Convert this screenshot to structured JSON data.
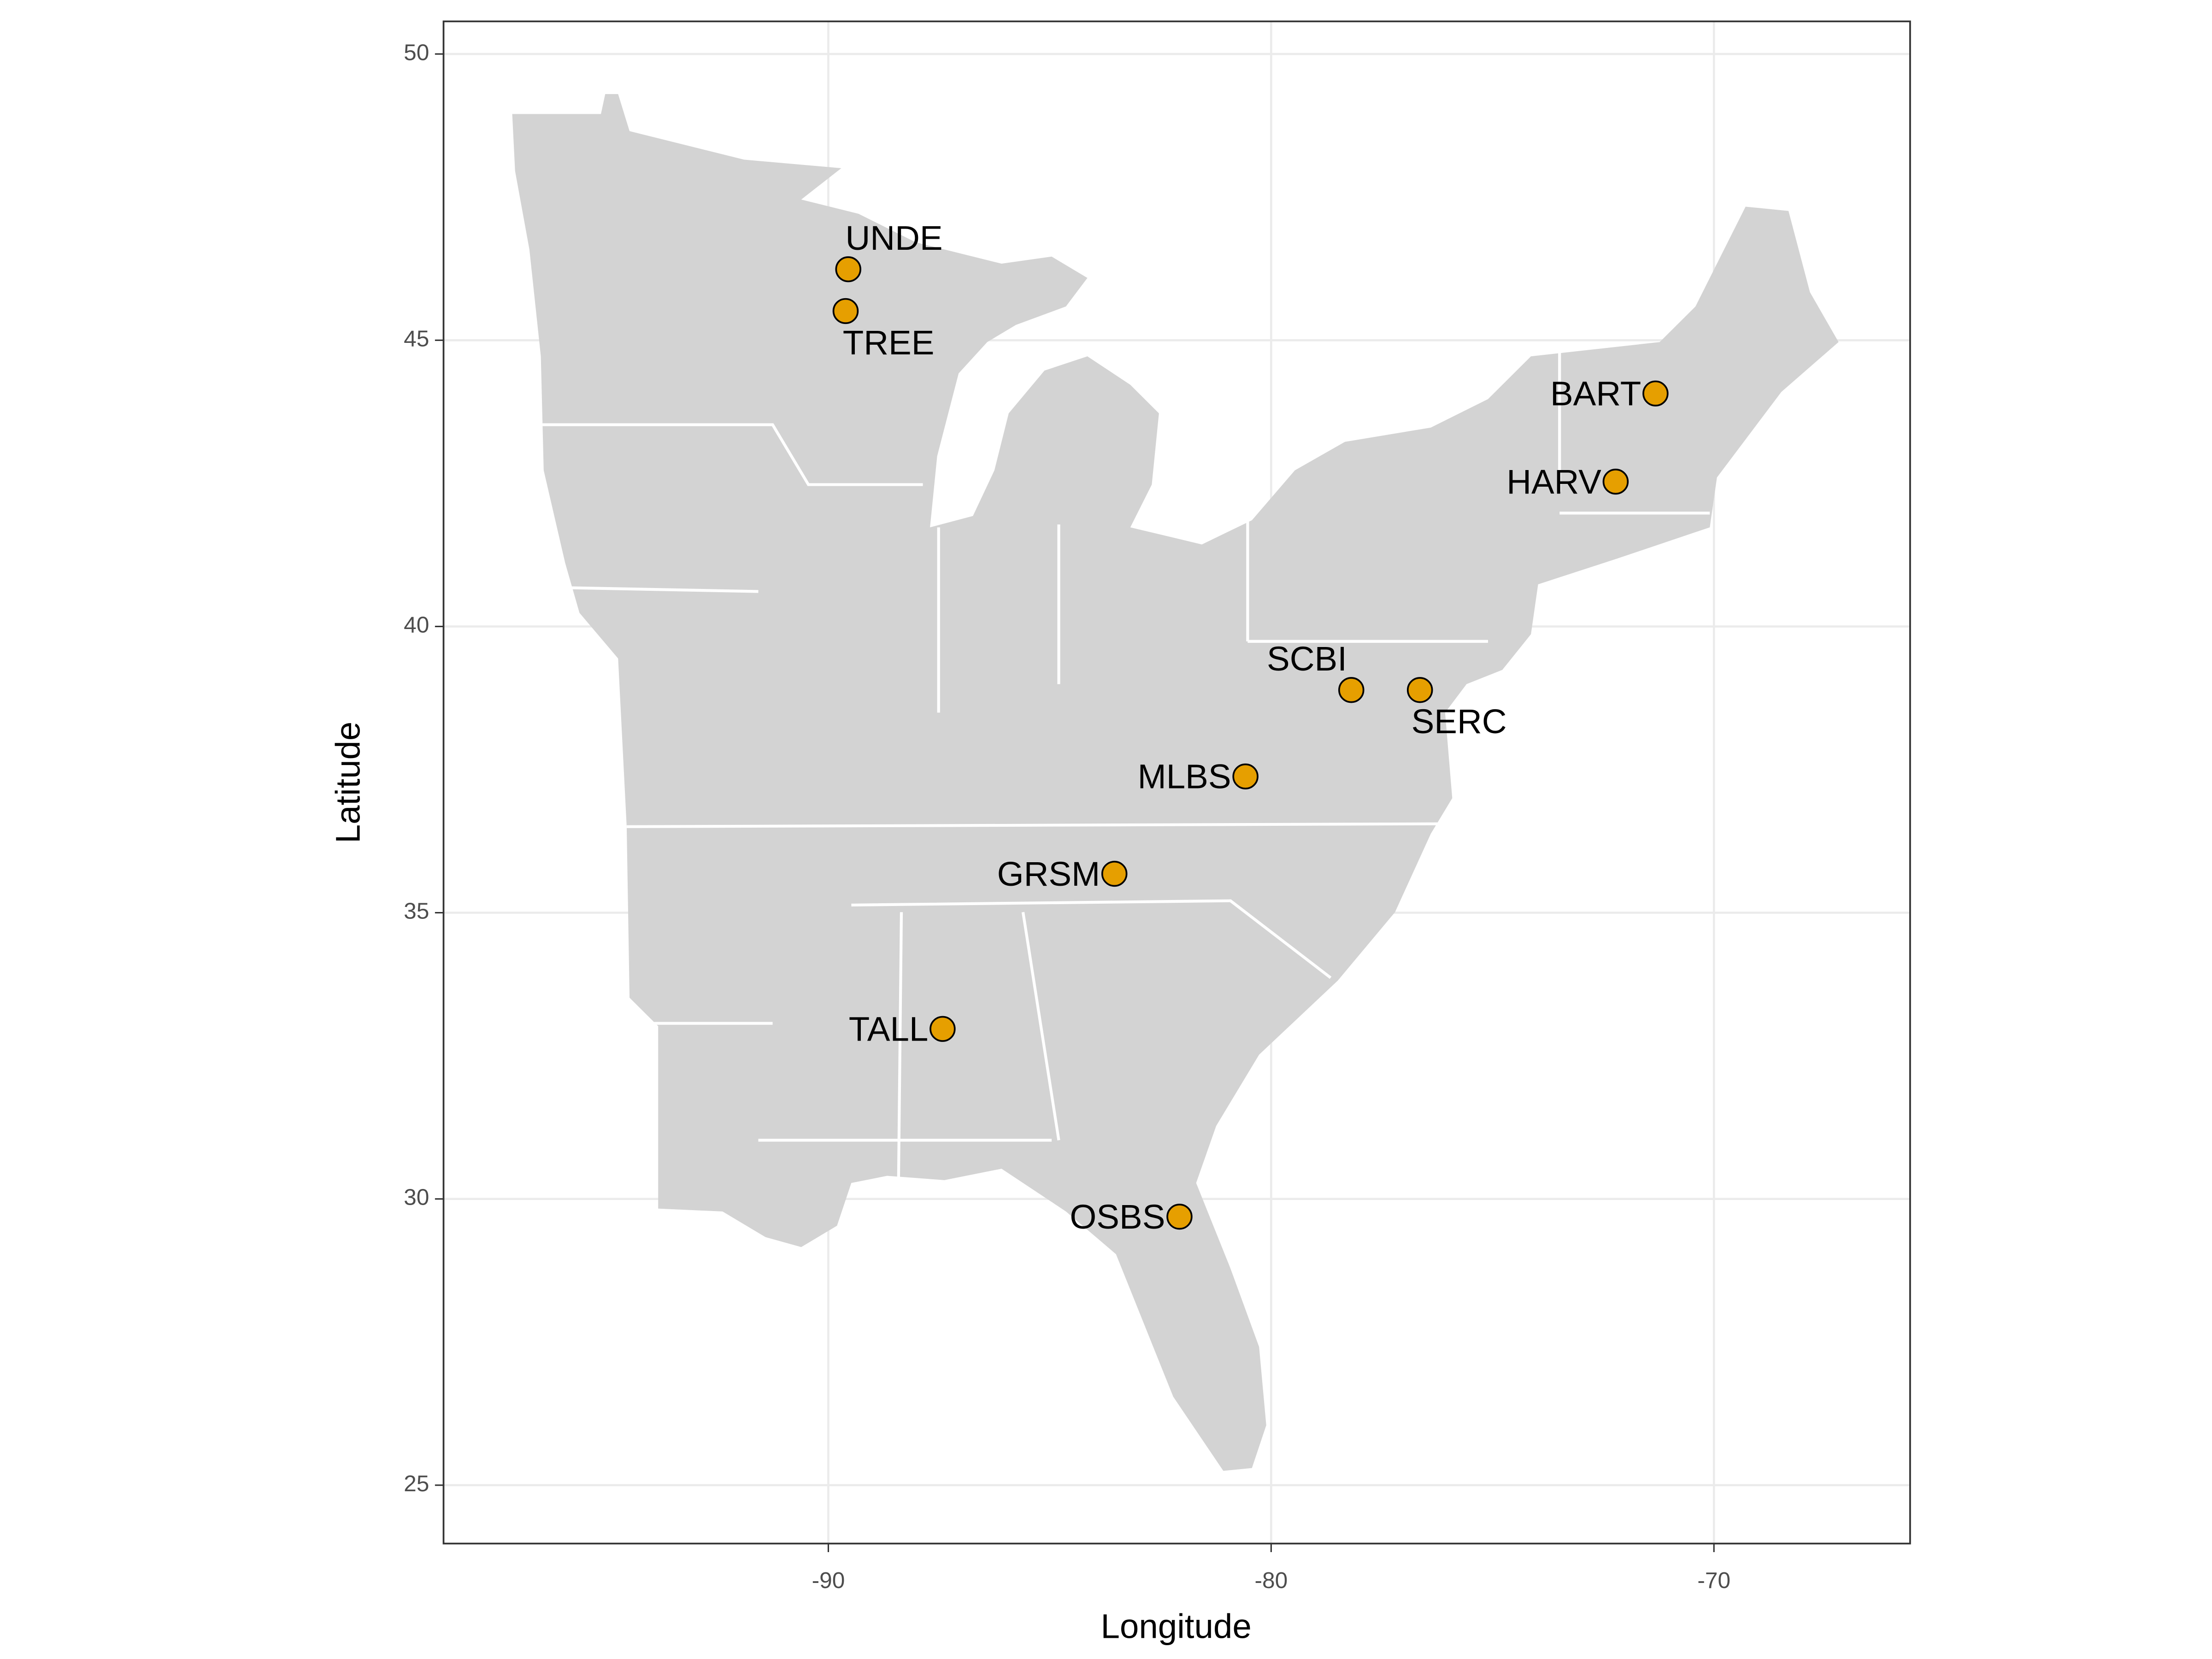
{
  "chart_data": {
    "type": "scatter",
    "xlabel": "Longitude",
    "ylabel": "Latitude",
    "labels": [
      "UNDE",
      "TREE",
      "BART",
      "HARV",
      "SCBI",
      "SERC",
      "MLBS",
      "GRSM",
      "TALL",
      "OSBS"
    ],
    "x": [
      -89.55,
      -89.61,
      -71.32,
      -72.22,
      -78.19,
      -76.64,
      -80.58,
      -83.54,
      -87.42,
      -82.07
    ],
    "y": [
      46.24,
      45.51,
      44.07,
      42.53,
      38.89,
      38.89,
      37.38,
      35.68,
      32.97,
      29.69
    ],
    "color": "#e69f00",
    "xlim": [
      -98.69,
      -65.57
    ],
    "ylim": [
      23.98,
      50.57
    ],
    "xticks": [
      -90,
      -80,
      -70
    ],
    "yticks": [
      25,
      30,
      35,
      40,
      45,
      50
    ],
    "grid": true
  }
}
